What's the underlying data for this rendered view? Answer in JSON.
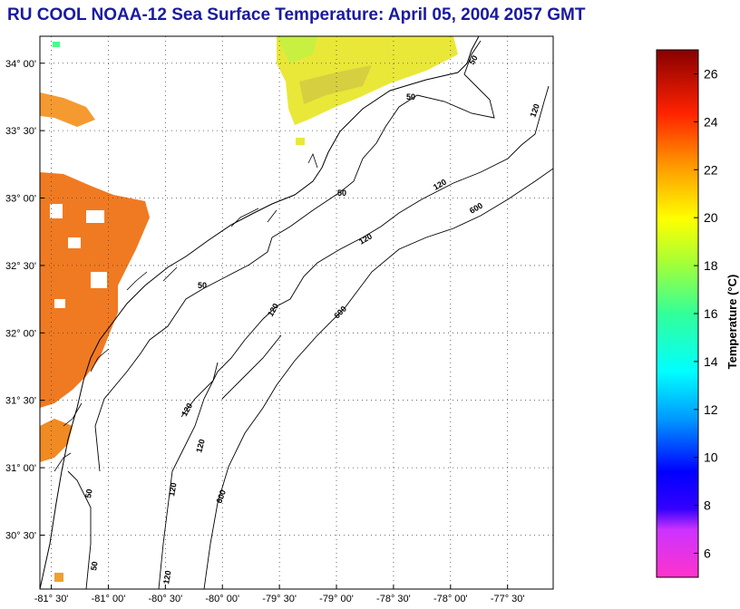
{
  "title": "RU COOL  NOAA-12  Sea Surface Temperature:  April 05, 2004 2057 GMT",
  "map": {
    "lon_range": [
      -81.6,
      -77.1
    ],
    "lat_range": [
      30.1,
      34.2
    ],
    "lon_ticks": [
      -81.5,
      -81.0,
      -80.5,
      -80.0,
      -79.5,
      -79.0,
      -78.5,
      -78.0,
      -77.5
    ],
    "lat_ticks": [
      30.5,
      31.0,
      31.5,
      32.0,
      32.5,
      33.0,
      33.5,
      34.0
    ],
    "lon_tick_labels": [
      "-81° 30'",
      "-81° 00'",
      "-80° 30'",
      "-80° 00'",
      "-79° 30'",
      "-79° 00'",
      "-78° 30'",
      "-78° 00'",
      "-77° 30'"
    ],
    "lat_tick_labels": [
      "30° 30'",
      "31° 00'",
      "31° 30'",
      "32° 00'",
      "32° 30'",
      "33° 00'",
      "33° 30'",
      "34° 00'"
    ],
    "grid": "dotted",
    "contour_labels": [
      "50",
      "120",
      "600"
    ]
  },
  "colorbar": {
    "label": "Temperature (°C)",
    "range": [
      5,
      27
    ],
    "ticks": [
      6,
      8,
      10,
      12,
      14,
      16,
      18,
      20,
      22,
      24,
      26
    ],
    "colors": [
      "#ff33cc",
      "#9933ff",
      "#0000ff",
      "#0099ff",
      "#00ffff",
      "#33ff99",
      "#99ff33",
      "#ffff00",
      "#ff9900",
      "#ff0000",
      "#990000"
    ]
  }
}
